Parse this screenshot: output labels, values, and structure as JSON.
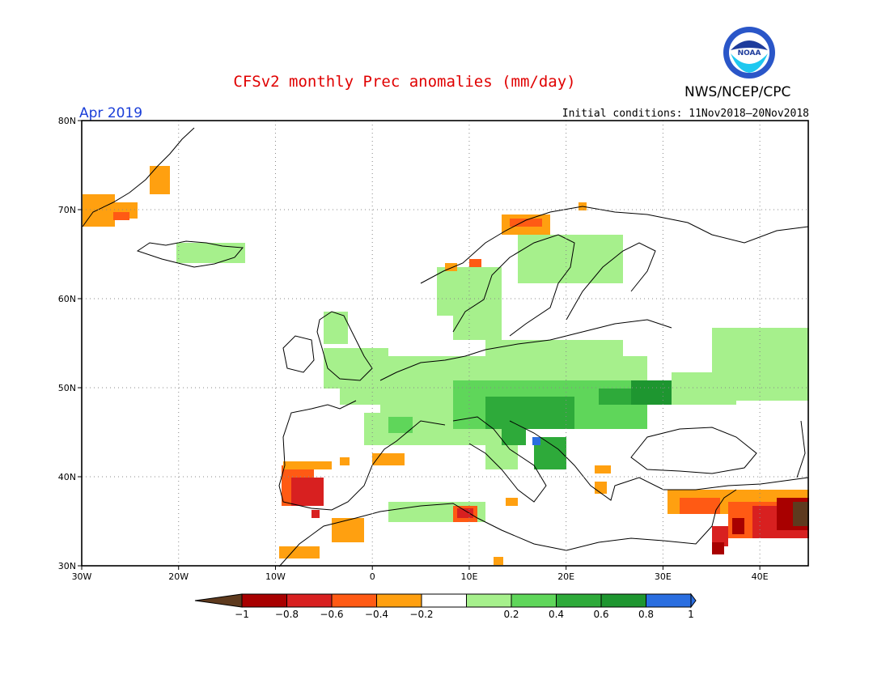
{
  "title": "CFSv2 monthly Prec anomalies (mm/day)",
  "agency": "NWS/NCEP/CPC",
  "logo_text": "NOAA",
  "valid_month": "Apr 2019",
  "initial_conditions": "Initial conditions: 11Nov2018–20Nov2018",
  "axes": {
    "lon_ticks": [
      "30W",
      "20W",
      "10W",
      "0",
      "10E",
      "20E",
      "30E",
      "40E"
    ],
    "lat_ticks": [
      "80N",
      "70N",
      "60N",
      "50N",
      "40N",
      "30N"
    ],
    "lon_range": [
      -30,
      45
    ],
    "lat_range": [
      30,
      80
    ]
  },
  "colorbar": {
    "labels": [
      "−1",
      "−0.8",
      "−0.6",
      "−0.4",
      "−0.2",
      "0.2",
      "0.4",
      "0.6",
      "0.8",
      "1"
    ],
    "colors": [
      "#5e3a1e",
      "#a80000",
      "#d82020",
      "#ff5a14",
      "#ffa010",
      "#ffffff",
      "#a6f08c",
      "#5fd65a",
      "#2eaa3a",
      "#1e9630",
      "#2a6ee0"
    ]
  },
  "colors": {
    "title": "#e00000",
    "month": "#1a3ed8",
    "grid": "#888888"
  }
}
